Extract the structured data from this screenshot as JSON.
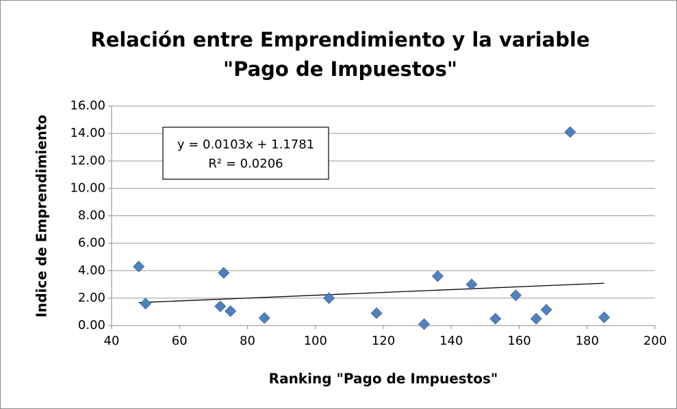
{
  "chart_data": {
    "type": "scatter",
    "title": [
      "Relación entre Emprendimiento y la variable",
      "\"Pago de Impuestos\""
    ],
    "x_label": "Ranking \"Pago de Impuestos\"",
    "y_label": "Indice de Emprendimiento",
    "series": [
      {
        "color": "#4f81bd",
        "x": [
          48,
          50,
          72,
          73,
          75,
          85,
          104,
          118,
          132,
          136,
          146,
          153,
          159,
          165,
          168,
          175,
          185
        ],
        "values": [
          4.3,
          1.6,
          1.4,
          3.84,
          1.05,
          0.55,
          2.0,
          0.9,
          0.1,
          3.6,
          3.0,
          0.5,
          2.2,
          0.5,
          1.15,
          14.1,
          0.6
        ]
      }
    ],
    "trendline": {
      "slope": 0.0103,
      "intercept": 1.1781,
      "equation": [
        "y = 0.0103x + 1.1781",
        "R² = 0.0206"
      ]
    },
    "xlim": [
      40,
      200
    ],
    "xticks": [
      40,
      60,
      80,
      100,
      120,
      140,
      160,
      180,
      200
    ],
    "ylim": [
      0,
      16
    ],
    "yticks": [
      {
        "value": 0,
        "label": "0.00"
      },
      {
        "value": 2,
        "label": "2.00"
      },
      {
        "value": 4,
        "label": "4.00"
      },
      {
        "value": 6,
        "label": "6.00"
      },
      {
        "value": 8,
        "label": "8.00"
      },
      {
        "value": 10,
        "label": "10.00"
      },
      {
        "value": 12,
        "label": "12.00"
      },
      {
        "value": 14,
        "label": "14.00"
      },
      {
        "value": 16,
        "label": "16.00"
      }
    ],
    "grid": true
  }
}
